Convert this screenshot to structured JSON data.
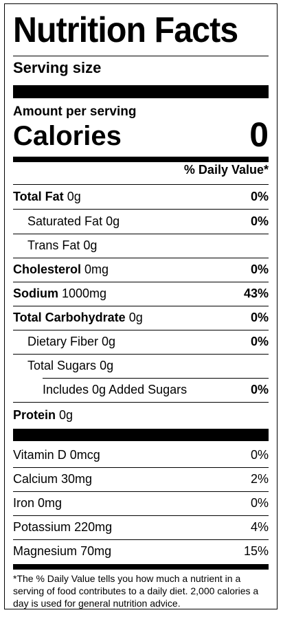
{
  "title": "Nutrition Facts",
  "serving_size_label": "Serving size",
  "amount_per_serving": "Amount per serving",
  "calories_label": "Calories",
  "calories_value": "0",
  "daily_value_header": "% Daily Value*",
  "nutrients": [
    {
      "label": "Total Fat",
      "amount": "0g",
      "dv": "0%"
    },
    {
      "label": "Saturated Fat",
      "amount": "0g",
      "dv": "0%"
    },
    {
      "label": "Trans Fat",
      "amount": "0g",
      "dv": ""
    },
    {
      "label": "Cholesterol",
      "amount": "0mg",
      "dv": "0%"
    },
    {
      "label": "Sodium",
      "amount": "1000mg",
      "dv": "43%"
    },
    {
      "label": "Total Carbohydrate",
      "amount": "0g",
      "dv": "0%"
    },
    {
      "label": "Dietary Fiber",
      "amount": "0g",
      "dv": "0%"
    },
    {
      "label": "Total Sugars",
      "amount": "0g",
      "dv": ""
    },
    {
      "label": "Includes 0g Added Sugars",
      "amount": "",
      "dv": "0%"
    },
    {
      "label": "Protein",
      "amount": "0g",
      "dv": ""
    }
  ],
  "vitamins": [
    {
      "label": "Vitamin D",
      "amount": "0mcg",
      "dv": "0%"
    },
    {
      "label": "Calcium",
      "amount": "30mg",
      "dv": "2%"
    },
    {
      "label": "Iron",
      "amount": "0mg",
      "dv": "0%"
    },
    {
      "label": "Potassium",
      "amount": "220mg",
      "dv": "4%"
    },
    {
      "label": "Magnesium",
      "amount": "70mg",
      "dv": "15%"
    }
  ],
  "footnote": "*The % Daily Value tells you how much a nutrient in a serving of food contributes to a daily diet. 2,000 calories a day is used for general nutrition advice."
}
